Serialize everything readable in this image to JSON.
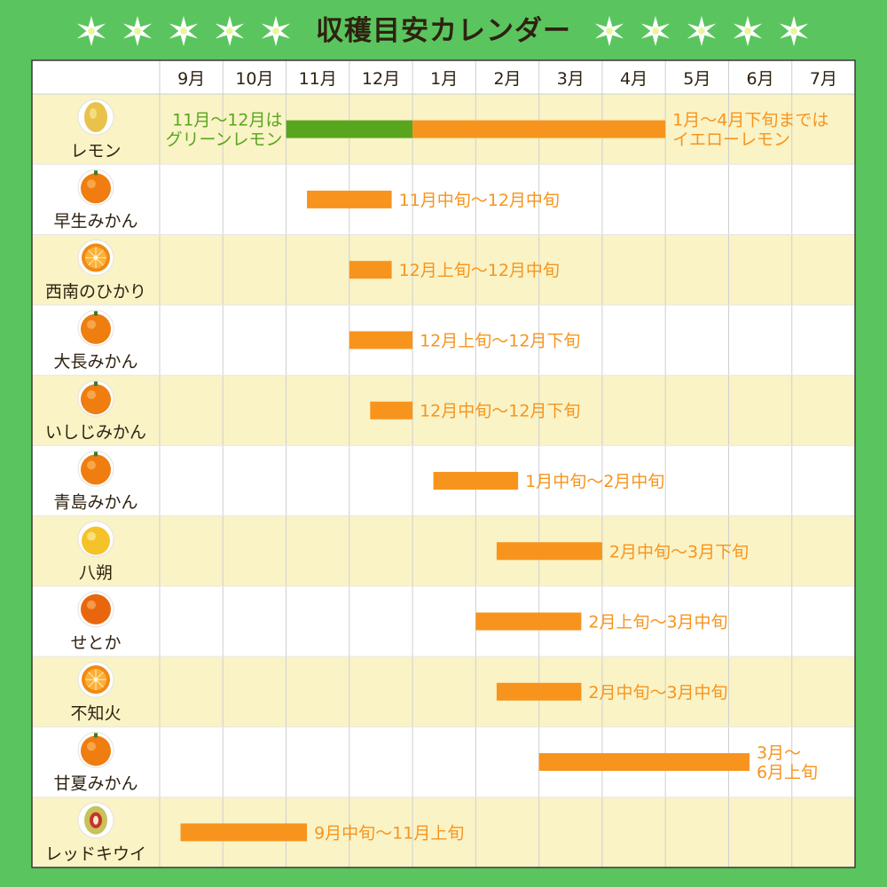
{
  "title": "収穫目安カレンダー",
  "colors": {
    "background": "#5ac55e",
    "orange_bar": "#f7941d",
    "green_bar": "#58a61e",
    "text_orange": "#f7941d",
    "text_green": "#58a61e",
    "row_band": "#faf3c6",
    "row_white": "#ffffff",
    "label_text": "#2e2210"
  },
  "chart_data": {
    "type": "gantt",
    "months": [
      "9月",
      "10月",
      "11月",
      "12月",
      "1月",
      "2月",
      "3月",
      "4月",
      "5月",
      "6月",
      "7月"
    ],
    "rows": [
      {
        "name": "レモン",
        "icon": "lemon-icon",
        "bars": [
          {
            "start": 2.0,
            "end": 4.0,
            "color": "green"
          },
          {
            "start": 4.0,
            "end": 8.0,
            "color": "orange"
          }
        ],
        "labels": [
          {
            "lines": [
              "11月～12月は",
              "グリーンレモン"
            ],
            "color": "green",
            "side": "left"
          },
          {
            "lines": [
              "1月～4月下旬までは",
              "イエローレモン"
            ],
            "color": "orange",
            "side": "right"
          }
        ]
      },
      {
        "name": "早生みかん",
        "icon": "mikan-icon",
        "bars": [
          {
            "start": 2.33,
            "end": 3.67,
            "color": "orange"
          }
        ],
        "labels": [
          {
            "lines": [
              "11月中旬～12月中旬"
            ],
            "color": "orange",
            "side": "right"
          }
        ]
      },
      {
        "name": "西南のひかり",
        "icon": "cut-orange-icon",
        "bars": [
          {
            "start": 3.0,
            "end": 3.67,
            "color": "orange"
          }
        ],
        "labels": [
          {
            "lines": [
              "12月上旬～12月中旬"
            ],
            "color": "orange",
            "side": "right"
          }
        ]
      },
      {
        "name": "大長みかん",
        "icon": "mikan-icon",
        "bars": [
          {
            "start": 3.0,
            "end": 4.0,
            "color": "orange"
          }
        ],
        "labels": [
          {
            "lines": [
              "12月上旬～12月下旬"
            ],
            "color": "orange",
            "side": "right"
          }
        ]
      },
      {
        "name": "いしじみかん",
        "icon": "mikan-icon",
        "bars": [
          {
            "start": 3.33,
            "end": 4.0,
            "color": "orange"
          }
        ],
        "labels": [
          {
            "lines": [
              "12月中旬～12月下旬"
            ],
            "color": "orange",
            "side": "right"
          }
        ]
      },
      {
        "name": "青島みかん",
        "icon": "mikan-icon",
        "bars": [
          {
            "start": 4.33,
            "end": 5.67,
            "color": "orange"
          }
        ],
        "labels": [
          {
            "lines": [
              "1月中旬～2月中旬"
            ],
            "color": "orange",
            "side": "right"
          }
        ]
      },
      {
        "name": "八朔",
        "icon": "hassaku-icon",
        "bars": [
          {
            "start": 5.33,
            "end": 7.0,
            "color": "orange"
          }
        ],
        "labels": [
          {
            "lines": [
              "2月中旬～3月下旬"
            ],
            "color": "orange",
            "side": "right"
          }
        ]
      },
      {
        "name": "せとか",
        "icon": "setoka-icon",
        "bars": [
          {
            "start": 5.0,
            "end": 6.67,
            "color": "orange"
          }
        ],
        "labels": [
          {
            "lines": [
              "2月上旬～3月中旬"
            ],
            "color": "orange",
            "side": "right"
          }
        ]
      },
      {
        "name": "不知火",
        "icon": "cut-orange-icon",
        "bars": [
          {
            "start": 5.33,
            "end": 6.67,
            "color": "orange"
          }
        ],
        "labels": [
          {
            "lines": [
              "2月中旬～3月中旬"
            ],
            "color": "orange",
            "side": "right"
          }
        ]
      },
      {
        "name": "甘夏みかん",
        "icon": "mikan-icon",
        "bars": [
          {
            "start": 6.0,
            "end": 9.33,
            "color": "orange"
          }
        ],
        "labels": [
          {
            "lines": [
              "3月～",
              "6月上旬"
            ],
            "color": "orange",
            "side": "right"
          }
        ]
      },
      {
        "name": "レッドキウイ",
        "icon": "kiwi-icon",
        "bars": [
          {
            "start": 0.33,
            "end": 2.33,
            "color": "orange"
          }
        ],
        "labels": [
          {
            "lines": [
              "9月中旬～11月上旬"
            ],
            "color": "orange",
            "side": "right"
          }
        ]
      }
    ]
  }
}
